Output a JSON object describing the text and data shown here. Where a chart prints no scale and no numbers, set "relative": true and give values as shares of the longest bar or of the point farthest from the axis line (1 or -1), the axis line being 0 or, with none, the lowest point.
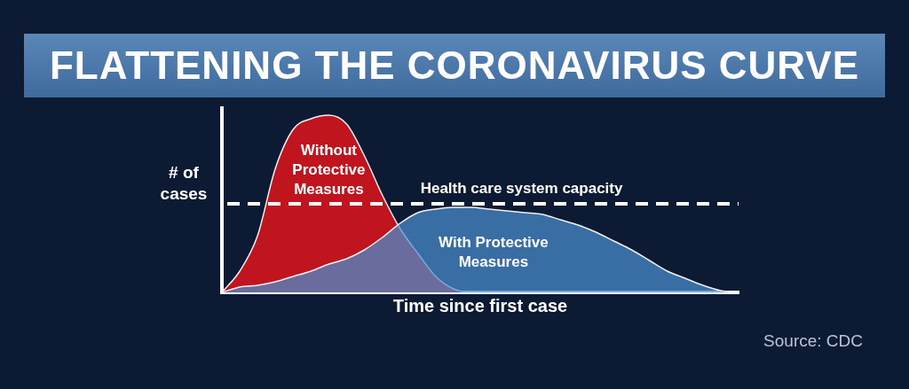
{
  "chart_data": {
    "type": "area",
    "title": "FLATTENING THE CORONAVIRUS CURVE",
    "xlabel": "Time since first case",
    "ylabel": "# of cases",
    "relative": true,
    "grid": false,
    "legend": false,
    "tick_labels": false,
    "marker": "none",
    "categories": [
      null,
      null,
      null,
      null,
      null,
      null,
      null,
      null,
      null,
      null,
      null,
      null,
      null,
      null,
      null,
      null,
      null,
      null,
      null,
      null,
      null,
      null,
      null,
      null,
      null,
      null,
      null,
      null,
      null,
      null
    ],
    "series": [
      {
        "name": "Without Protective Measures",
        "color": "#c0141f",
        "values": [
          0,
          0.12,
          0.32,
          0.7,
          0.92,
          0.98,
          1,
          0.95,
          0.77,
          0.55,
          0.36,
          0.22,
          0.09,
          0.02,
          0,
          0,
          0,
          0,
          0,
          0,
          0,
          0,
          0,
          0,
          0,
          0,
          0,
          0,
          0,
          0
        ]
      },
      {
        "name": "With Protective Measures",
        "color": "#4a8fd0",
        "values": [
          0,
          0.03,
          0.04,
          0.06,
          0.09,
          0.12,
          0.16,
          0.19,
          0.24,
          0.31,
          0.39,
          0.45,
          0.47,
          0.48,
          0.48,
          0.47,
          0.46,
          0.45,
          0.44,
          0.41,
          0.38,
          0.34,
          0.29,
          0.24,
          0.18,
          0.12,
          0.08,
          0.04,
          0.01,
          0
        ]
      }
    ],
    "ref_lines": [
      {
        "axis": "y",
        "value": 0.5,
        "label": "Health care system capacity",
        "color": "#ffffff",
        "line_style": "dashed"
      }
    ],
    "annotations": [
      "Source: CDC"
    ]
  }
}
